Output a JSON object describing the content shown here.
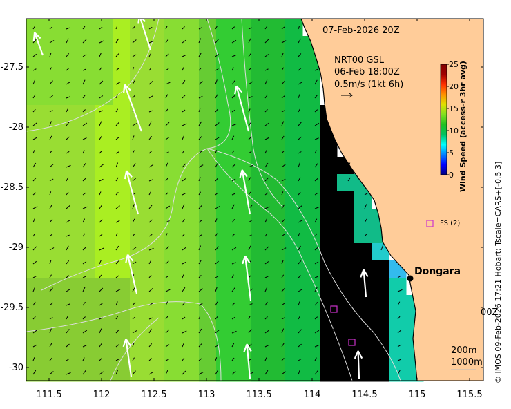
{
  "map": {
    "timestamp": "07-Feb-2026 20Z",
    "legend_title": "NRT00 GSL",
    "legend_time": "06-Feb 18:00Z",
    "legend_scale": "0.5m/s (1kt 6h)",
    "town": "Dongara",
    "station": "FS (2)",
    "partial_label": "00Z",
    "depth_200": "200m",
    "depth_1000": "1000m",
    "credit": "© IMOS 09-Feb-2026 17:21 Hobart; Tscale=CARS+[-0.5 3]",
    "y_ticks": [
      "-27.5",
      "-28",
      "-28.5",
      "-29",
      "-29.5",
      "-30"
    ],
    "x_ticks": [
      "111.5",
      "112",
      "112.5",
      "113",
      "113.5",
      "114",
      "114.5",
      "115",
      "115.5"
    ],
    "colors": {
      "land": "#ffcc99",
      "coast": "#000000",
      "station_marker": "#cc33cc"
    }
  },
  "colorbar": {
    "title": "Wind Speed (access-r 3hr avg)",
    "ticks": [
      "25",
      "20",
      "15",
      "10",
      "5",
      "0"
    ],
    "min": 0,
    "max": 25
  }
}
